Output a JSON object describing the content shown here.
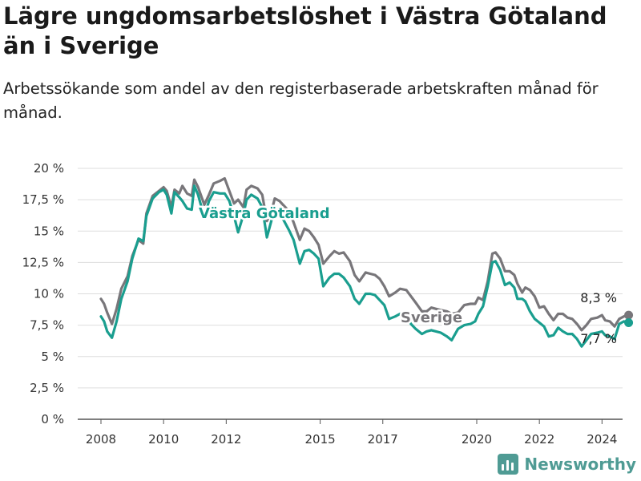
{
  "header": {
    "title": "Lägre ungdomsarbetslöshet i Västra Götaland än i Sverige",
    "subtitle": "Arbetssökande som andel av den registerbaserade arbetskraften månad för månad."
  },
  "brand": {
    "name": "Newsworthy",
    "icon": "bar-chart-logo-icon",
    "color": "#4f9b94"
  },
  "chart_data": {
    "type": "line",
    "ylim": [
      0,
      20
    ],
    "xlim": [
      2008,
      2025
    ],
    "y_ticks": [
      0,
      2.5,
      5,
      7.5,
      10,
      12.5,
      15,
      17.5,
      20
    ],
    "y_tick_labels": [
      "0 %",
      "2,5 %",
      "5 %",
      "7,5 %",
      "10 %",
      "12,5 %",
      "15 %",
      "17,5 %",
      "20 %"
    ],
    "x_ticks": [
      2008,
      2010,
      2012,
      2015,
      2017,
      2020,
      2022,
      2024
    ],
    "x_tick_labels": [
      "2008",
      "2010",
      "2012",
      "2015",
      "2017",
      "2020",
      "2022",
      "2024"
    ],
    "grid": true,
    "colors": {
      "sverige": "#78767a",
      "vastra_gotaland": "#1a9e8f"
    },
    "series": [
      {
        "key": "sverige",
        "name": "Sverige",
        "end_label": "8,3 %",
        "points": [
          [
            2008.0,
            9.6
          ],
          [
            2008.1,
            9.2
          ],
          [
            2008.2,
            8.5
          ],
          [
            2008.35,
            7.6
          ],
          [
            2008.5,
            8.8
          ],
          [
            2008.65,
            10.4
          ],
          [
            2008.85,
            11.4
          ],
          [
            2009.0,
            13.0
          ],
          [
            2009.2,
            14.3
          ],
          [
            2009.35,
            14.0
          ],
          [
            2009.45,
            16.4
          ],
          [
            2009.65,
            17.8
          ],
          [
            2009.85,
            18.2
          ],
          [
            2010.0,
            18.5
          ],
          [
            2010.1,
            18.2
          ],
          [
            2010.25,
            16.9
          ],
          [
            2010.35,
            18.3
          ],
          [
            2010.5,
            18.0
          ],
          [
            2010.6,
            18.6
          ],
          [
            2010.75,
            18.0
          ],
          [
            2010.9,
            17.8
          ],
          [
            2010.98,
            19.1
          ],
          [
            2011.1,
            18.5
          ],
          [
            2011.3,
            17.1
          ],
          [
            2011.45,
            17.9
          ],
          [
            2011.6,
            18.8
          ],
          [
            2011.8,
            19.0
          ],
          [
            2011.95,
            19.2
          ],
          [
            2012.1,
            18.2
          ],
          [
            2012.25,
            17.2
          ],
          [
            2012.38,
            17.5
          ],
          [
            2012.55,
            16.9
          ],
          [
            2012.65,
            18.3
          ],
          [
            2012.8,
            18.6
          ],
          [
            2013.0,
            18.4
          ],
          [
            2013.15,
            17.9
          ],
          [
            2013.3,
            15.8
          ],
          [
            2013.45,
            16.6
          ],
          [
            2013.55,
            17.6
          ],
          [
            2013.7,
            17.4
          ],
          [
            2013.85,
            17.0
          ],
          [
            2014.0,
            16.6
          ],
          [
            2014.15,
            15.7
          ],
          [
            2014.35,
            14.3
          ],
          [
            2014.5,
            15.2
          ],
          [
            2014.65,
            15.0
          ],
          [
            2014.8,
            14.5
          ],
          [
            2014.95,
            13.9
          ],
          [
            2015.1,
            12.4
          ],
          [
            2015.3,
            13.0
          ],
          [
            2015.45,
            13.4
          ],
          [
            2015.6,
            13.2
          ],
          [
            2015.75,
            13.3
          ],
          [
            2015.95,
            12.6
          ],
          [
            2016.1,
            11.5
          ],
          [
            2016.25,
            11.0
          ],
          [
            2016.45,
            11.7
          ],
          [
            2016.6,
            11.6
          ],
          [
            2016.75,
            11.5
          ],
          [
            2016.9,
            11.2
          ],
          [
            2017.05,
            10.6
          ],
          [
            2017.2,
            9.8
          ],
          [
            2017.4,
            10.1
          ],
          [
            2017.55,
            10.4
          ],
          [
            2017.75,
            10.3
          ],
          [
            2017.9,
            9.8
          ],
          [
            2018.05,
            9.3
          ],
          [
            2018.25,
            8.6
          ],
          [
            2018.4,
            8.6
          ],
          [
            2018.55,
            8.9
          ],
          [
            2018.7,
            8.8
          ],
          [
            2018.85,
            8.7
          ],
          [
            2019.05,
            8.6
          ],
          [
            2019.2,
            8.4
          ],
          [
            2019.4,
            8.5
          ],
          [
            2019.6,
            9.1
          ],
          [
            2019.8,
            9.2
          ],
          [
            2019.95,
            9.2
          ],
          [
            2020.05,
            9.7
          ],
          [
            2020.2,
            9.5
          ],
          [
            2020.35,
            11.0
          ],
          [
            2020.5,
            13.2
          ],
          [
            2020.6,
            13.3
          ],
          [
            2020.75,
            12.8
          ],
          [
            2020.9,
            11.8
          ],
          [
            2021.05,
            11.8
          ],
          [
            2021.2,
            11.5
          ],
          [
            2021.3,
            10.8
          ],
          [
            2021.45,
            10.1
          ],
          [
            2021.55,
            10.5
          ],
          [
            2021.7,
            10.3
          ],
          [
            2021.85,
            9.8
          ],
          [
            2022.0,
            8.9
          ],
          [
            2022.15,
            9.0
          ],
          [
            2022.3,
            8.4
          ],
          [
            2022.45,
            7.9
          ],
          [
            2022.6,
            8.4
          ],
          [
            2022.75,
            8.4
          ],
          [
            2022.9,
            8.1
          ],
          [
            2023.05,
            8.0
          ],
          [
            2023.2,
            7.6
          ],
          [
            2023.35,
            7.1
          ],
          [
            2023.5,
            7.5
          ],
          [
            2023.65,
            8.0
          ],
          [
            2023.85,
            8.1
          ],
          [
            2024.0,
            8.3
          ],
          [
            2024.1,
            7.9
          ],
          [
            2024.25,
            7.8
          ],
          [
            2024.4,
            7.4
          ],
          [
            2024.55,
            8.0
          ],
          [
            2024.7,
            8.2
          ],
          [
            2024.85,
            8.3
          ]
        ]
      },
      {
        "key": "vastra_gotaland",
        "name": "Västra Götaland",
        "end_label": "7,7 %",
        "points": [
          [
            2008.0,
            8.2
          ],
          [
            2008.1,
            7.8
          ],
          [
            2008.2,
            7.0
          ],
          [
            2008.35,
            6.5
          ],
          [
            2008.5,
            7.8
          ],
          [
            2008.65,
            9.6
          ],
          [
            2008.85,
            11.0
          ],
          [
            2009.0,
            12.8
          ],
          [
            2009.2,
            14.4
          ],
          [
            2009.35,
            14.2
          ],
          [
            2009.45,
            16.2
          ],
          [
            2009.65,
            17.6
          ],
          [
            2009.85,
            18.1
          ],
          [
            2010.0,
            18.3
          ],
          [
            2010.1,
            17.9
          ],
          [
            2010.25,
            16.4
          ],
          [
            2010.35,
            18.1
          ],
          [
            2010.5,
            17.7
          ],
          [
            2010.6,
            17.4
          ],
          [
            2010.75,
            16.8
          ],
          [
            2010.9,
            16.7
          ],
          [
            2010.98,
            18.6
          ],
          [
            2011.1,
            17.9
          ],
          [
            2011.3,
            16.1
          ],
          [
            2011.45,
            17.4
          ],
          [
            2011.6,
            18.1
          ],
          [
            2011.8,
            18.0
          ],
          [
            2011.95,
            18.0
          ],
          [
            2012.1,
            17.4
          ],
          [
            2012.25,
            16.2
          ],
          [
            2012.38,
            14.9
          ],
          [
            2012.55,
            16.3
          ],
          [
            2012.65,
            17.5
          ],
          [
            2012.8,
            17.9
          ],
          [
            2013.0,
            17.6
          ],
          [
            2013.15,
            16.9
          ],
          [
            2013.3,
            14.5
          ],
          [
            2013.45,
            15.9
          ],
          [
            2013.55,
            16.8
          ],
          [
            2013.7,
            16.4
          ],
          [
            2013.85,
            15.8
          ],
          [
            2014.0,
            15.1
          ],
          [
            2014.15,
            14.3
          ],
          [
            2014.35,
            12.4
          ],
          [
            2014.5,
            13.4
          ],
          [
            2014.65,
            13.5
          ],
          [
            2014.8,
            13.2
          ],
          [
            2014.95,
            12.8
          ],
          [
            2015.1,
            10.6
          ],
          [
            2015.3,
            11.3
          ],
          [
            2015.45,
            11.6
          ],
          [
            2015.6,
            11.6
          ],
          [
            2015.75,
            11.3
          ],
          [
            2015.95,
            10.6
          ],
          [
            2016.1,
            9.6
          ],
          [
            2016.25,
            9.2
          ],
          [
            2016.45,
            10.0
          ],
          [
            2016.6,
            10.0
          ],
          [
            2016.75,
            9.9
          ],
          [
            2016.9,
            9.5
          ],
          [
            2017.05,
            9.1
          ],
          [
            2017.2,
            8.0
          ],
          [
            2017.4,
            8.2
          ],
          [
            2017.55,
            8.4
          ],
          [
            2017.75,
            8.2
          ],
          [
            2017.9,
            7.6
          ],
          [
            2018.05,
            7.2
          ],
          [
            2018.25,
            6.8
          ],
          [
            2018.4,
            7.0
          ],
          [
            2018.55,
            7.1
          ],
          [
            2018.7,
            7.0
          ],
          [
            2018.85,
            6.9
          ],
          [
            2019.05,
            6.6
          ],
          [
            2019.2,
            6.3
          ],
          [
            2019.4,
            7.2
          ],
          [
            2019.6,
            7.5
          ],
          [
            2019.8,
            7.6
          ],
          [
            2019.95,
            7.8
          ],
          [
            2020.05,
            8.4
          ],
          [
            2020.2,
            9.0
          ],
          [
            2020.35,
            10.6
          ],
          [
            2020.5,
            12.5
          ],
          [
            2020.6,
            12.6
          ],
          [
            2020.75,
            11.9
          ],
          [
            2020.9,
            10.7
          ],
          [
            2021.05,
            10.9
          ],
          [
            2021.2,
            10.5
          ],
          [
            2021.3,
            9.6
          ],
          [
            2021.45,
            9.6
          ],
          [
            2021.55,
            9.4
          ],
          [
            2021.7,
            8.6
          ],
          [
            2021.85,
            8.0
          ],
          [
            2022.0,
            7.7
          ],
          [
            2022.15,
            7.4
          ],
          [
            2022.3,
            6.6
          ],
          [
            2022.45,
            6.7
          ],
          [
            2022.6,
            7.3
          ],
          [
            2022.75,
            7.0
          ],
          [
            2022.9,
            6.8
          ],
          [
            2023.05,
            6.8
          ],
          [
            2023.2,
            6.4
          ],
          [
            2023.35,
            5.8
          ],
          [
            2023.5,
            6.3
          ],
          [
            2023.65,
            6.8
          ],
          [
            2023.85,
            6.9
          ],
          [
            2024.0,
            7.0
          ],
          [
            2024.1,
            6.7
          ],
          [
            2024.25,
            6.6
          ],
          [
            2024.4,
            6.4
          ],
          [
            2024.55,
            7.6
          ],
          [
            2024.7,
            7.8
          ],
          [
            2024.85,
            7.7
          ]
        ]
      }
    ]
  }
}
